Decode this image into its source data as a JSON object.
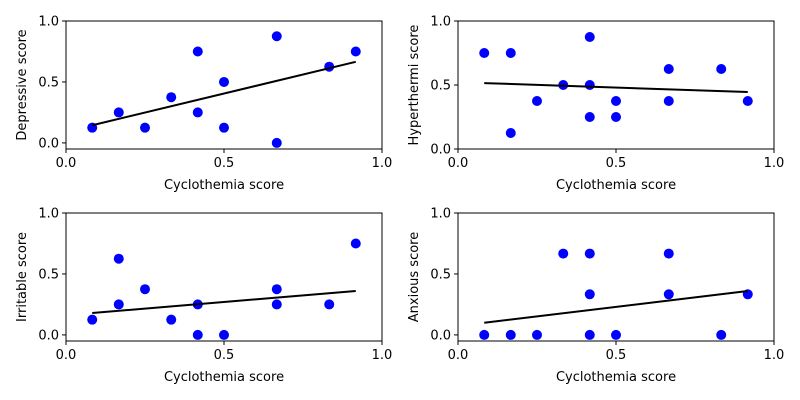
{
  "colors": {
    "points": "#0000ff",
    "fit_line": "#000000",
    "background": "#ffffff"
  },
  "chart_data": [
    {
      "type": "scatter",
      "title": "",
      "xlabel": "Cyclothemia score",
      "ylabel": "Depressive score",
      "xlim": [
        0,
        1.0
      ],
      "ylim": [
        -0.05,
        1.0
      ],
      "xticks": [
        0.0,
        0.5,
        1.0
      ],
      "xtick_labels": [
        "0.0",
        "0.5",
        "1.0"
      ],
      "yticks": [
        0.0,
        0.5,
        1.0
      ],
      "ytick_labels": [
        "0.0",
        "0.5",
        "1.0"
      ],
      "x": [
        0.083,
        0.167,
        0.25,
        0.333,
        0.417,
        0.417,
        0.5,
        0.5,
        0.667,
        0.667,
        0.833,
        0.917
      ],
      "y": [
        0.125,
        0.25,
        0.125,
        0.375,
        0.75,
        0.25,
        0.5,
        0.125,
        0.875,
        0.0,
        0.625,
        0.75
      ],
      "fit_line": {
        "x": [
          0.083,
          0.917
        ],
        "y": [
          0.145,
          0.665
        ]
      }
    },
    {
      "type": "scatter",
      "title": "",
      "xlabel": "Cyclothemia score",
      "ylabel": "Hyperthermi score",
      "xlim": [
        0,
        1.0
      ],
      "ylim": [
        0.0,
        1.0
      ],
      "xticks": [
        0.0,
        0.5,
        1.0
      ],
      "xtick_labels": [
        "0.0",
        "0.5",
        "1.0"
      ],
      "yticks": [
        0.0,
        0.5,
        1.0
      ],
      "ytick_labels": [
        "0.0",
        "0.5",
        "1.0"
      ],
      "x": [
        0.083,
        0.167,
        0.167,
        0.25,
        0.333,
        0.417,
        0.417,
        0.417,
        0.5,
        0.5,
        0.667,
        0.667,
        0.833,
        0.917
      ],
      "y": [
        0.75,
        0.75,
        0.125,
        0.375,
        0.5,
        0.875,
        0.5,
        0.25,
        0.375,
        0.25,
        0.625,
        0.375,
        0.625,
        0.375
      ],
      "fit_line": {
        "x": [
          0.083,
          0.917
        ],
        "y": [
          0.515,
          0.445
        ]
      }
    },
    {
      "type": "scatter",
      "title": "",
      "xlabel": "Cyclothemia score",
      "ylabel": "Irritable score",
      "xlim": [
        0,
        1.0
      ],
      "ylim": [
        -0.05,
        1.0
      ],
      "xticks": [
        0.0,
        0.5,
        1.0
      ],
      "xtick_labels": [
        "0.0",
        "0.5",
        "1.0"
      ],
      "yticks": [
        0.0,
        0.5,
        1.0
      ],
      "ytick_labels": [
        "0.0",
        "0.5",
        "1.0"
      ],
      "x": [
        0.083,
        0.167,
        0.167,
        0.25,
        0.333,
        0.417,
        0.417,
        0.5,
        0.667,
        0.667,
        0.833,
        0.917
      ],
      "y": [
        0.125,
        0.625,
        0.25,
        0.375,
        0.125,
        0.25,
        0.0,
        0.0,
        0.375,
        0.25,
        0.25,
        0.75
      ],
      "fit_line": {
        "x": [
          0.083,
          0.917
        ],
        "y": [
          0.18,
          0.36
        ]
      }
    },
    {
      "type": "scatter",
      "title": "",
      "xlabel": "Cyclothemia score",
      "ylabel": "Anxious score",
      "xlim": [
        0,
        1.0
      ],
      "ylim": [
        -0.05,
        1.0
      ],
      "xticks": [
        0.0,
        0.5,
        1.0
      ],
      "xtick_labels": [
        "0.0",
        "0.5",
        "1.0"
      ],
      "yticks": [
        0.0,
        0.5,
        1.0
      ],
      "ytick_labels": [
        "0.0",
        "0.5",
        "1.0"
      ],
      "x": [
        0.083,
        0.167,
        0.25,
        0.333,
        0.417,
        0.417,
        0.417,
        0.5,
        0.667,
        0.667,
        0.833,
        0.917
      ],
      "y": [
        0.0,
        0.0,
        0.0,
        0.667,
        0.667,
        0.333,
        0.0,
        0.0,
        0.667,
        0.333,
        0.0,
        0.333
      ],
      "fit_line": {
        "x": [
          0.083,
          0.917
        ],
        "y": [
          0.1,
          0.36
        ]
      }
    }
  ]
}
